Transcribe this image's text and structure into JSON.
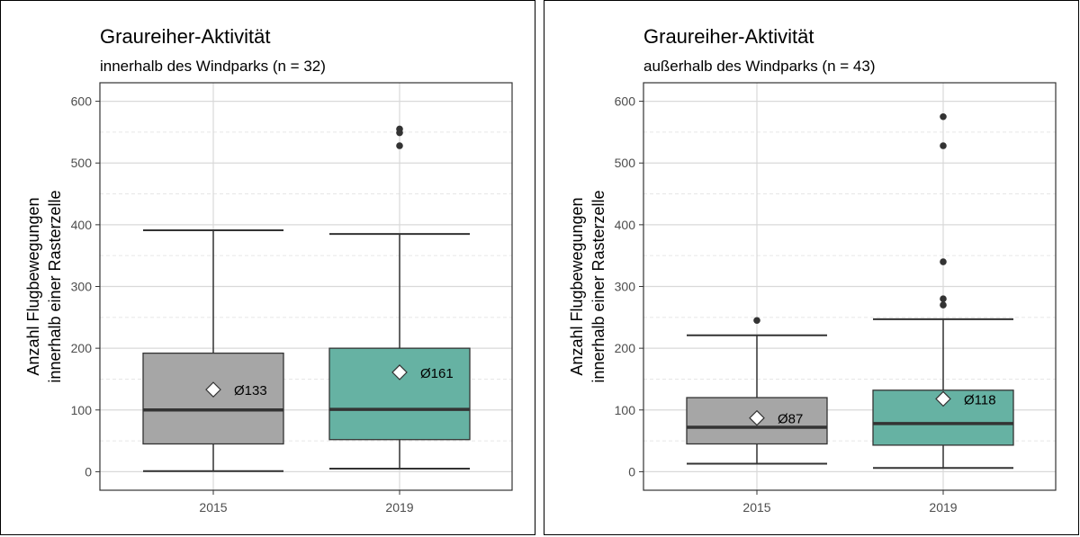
{
  "colors": {
    "box_2015": "#a6a6a6",
    "box_2019": "#66b2a3",
    "outline": "#333333",
    "grid": "#d9d9d9"
  },
  "chart_data": [
    {
      "type": "box",
      "title": "Graureiher-Aktivität",
      "subtitle": "innerhalb des Windparks (n = 32)",
      "xlabel": "",
      "ylabel": [
        "Anzahl Flugbewegungen",
        "innerhalb einer Rasterzelle"
      ],
      "categories": [
        "2015",
        "2019"
      ],
      "ylim": [
        -30,
        630
      ],
      "yticks": [
        0,
        100,
        200,
        300,
        400,
        500,
        600
      ],
      "ytick_labels": [
        "0",
        "100",
        "200",
        "300",
        "400",
        "500",
        "600"
      ],
      "grid": true,
      "boxes": [
        {
          "category": "2015",
          "min": 1,
          "q1": 45,
          "median": 100,
          "q3": 192,
          "max": 391,
          "mean": 133,
          "mean_label": "Ø133",
          "outliers": []
        },
        {
          "category": "2019",
          "min": 5,
          "q1": 52,
          "median": 101,
          "q3": 200,
          "max": 385,
          "mean": 161,
          "mean_label": "Ø161",
          "outliers": [
            528,
            549,
            555
          ]
        }
      ]
    },
    {
      "type": "box",
      "title": "Graureiher-Aktivität",
      "subtitle": "außerhalb des Windparks (n = 43)",
      "xlabel": "",
      "ylabel": [
        "Anzahl Flugbewegungen",
        "innerhalb einer Rasterzelle"
      ],
      "categories": [
        "2015",
        "2019"
      ],
      "ylim": [
        -30,
        630
      ],
      "yticks": [
        0,
        100,
        200,
        300,
        400,
        500,
        600
      ],
      "ytick_labels": [
        "0",
        "100",
        "200",
        "300",
        "400",
        "500",
        "600"
      ],
      "grid": true,
      "boxes": [
        {
          "category": "2015",
          "min": 13,
          "q1": 45,
          "median": 72,
          "q3": 120,
          "max": 221,
          "mean": 87,
          "mean_label": "Ø87",
          "outliers": [
            245
          ]
        },
        {
          "category": "2019",
          "min": 6,
          "q1": 43,
          "median": 78,
          "q3": 132,
          "max": 247,
          "mean": 118,
          "mean_label": "Ø118",
          "outliers": [
            270,
            280,
            340,
            528,
            575
          ]
        }
      ]
    }
  ]
}
